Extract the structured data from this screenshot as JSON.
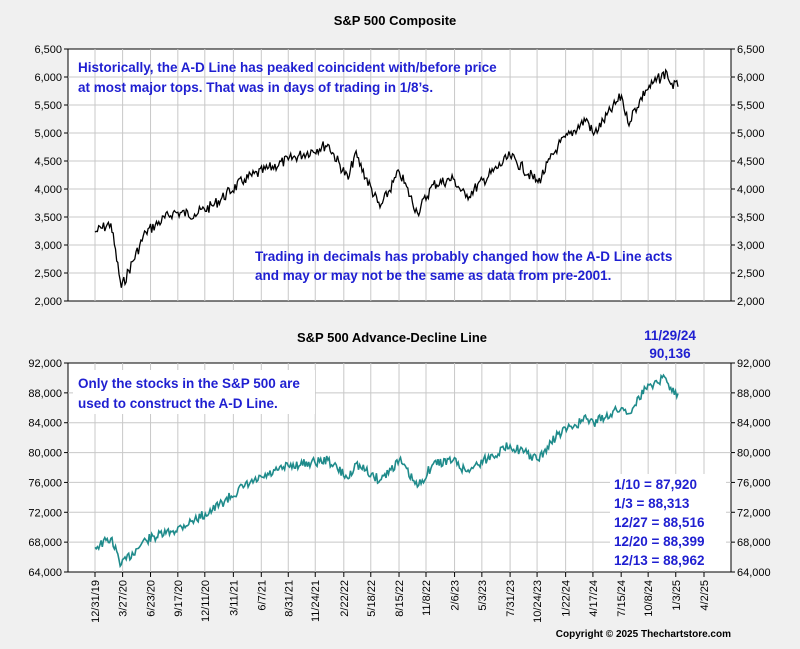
{
  "chart_data": [
    {
      "type": "line",
      "title": "S&P 500 Composite",
      "xlabel": "",
      "ylabel": "",
      "ylim": [
        2000,
        6500
      ],
      "yticks": [
        "2,000",
        "2,500",
        "3,000",
        "3,500",
        "4,000",
        "4,500",
        "5,000",
        "5,500",
        "6,000",
        "6,500"
      ],
      "grid": true,
      "line_color": "#000000",
      "x": [
        "12/31/19",
        "2/19/20",
        "3/23/20",
        "6/8/20",
        "9/2/20",
        "11/9/20",
        "1/4/21",
        "4/15/21",
        "8/31/21",
        "1/3/22",
        "3/8/22",
        "3/29/22",
        "6/16/22",
        "8/16/22",
        "10/12/22",
        "12/1/22",
        "2/2/23",
        "3/13/23",
        "7/31/23",
        "10/27/23",
        "12/29/23",
        "3/28/24",
        "4/19/24",
        "7/16/24",
        "8/5/24",
        "9/30/24",
        "12/6/24",
        "12/18/24",
        "1/10/25"
      ],
      "values": [
        3230,
        3386,
        2237,
        3232,
        3580,
        3550,
        3700,
        4170,
        4522,
        4796,
        4170,
        4631,
        3667,
        4305,
        3577,
        4080,
        4179,
        3856,
        4589,
        4117,
        4770,
        5254,
        4967,
        5667,
        5186,
        5762,
        6090,
        5872,
        5827
      ],
      "annotations": [
        {
          "text": "Historically, the A-D Line has peaked coincident with/before price"
        },
        {
          "text": "at most major tops.  That was in days of trading in 1/8’s."
        },
        {
          "text": "Trading in decimals has probably changed how the A-D Line acts"
        },
        {
          "text": "and may or may not be the same as data from pre-2001."
        }
      ]
    },
    {
      "type": "line",
      "title": "S&P 500 Advance-Decline Line",
      "xlabel": "",
      "ylabel": "",
      "ylim": [
        64000,
        92000
      ],
      "yticks": [
        "64,000",
        "68,000",
        "72,000",
        "76,000",
        "80,000",
        "84,000",
        "88,000",
        "92,000"
      ],
      "grid": true,
      "line_color": "#1f8b8b",
      "x": [
        "12/31/19",
        "2/19/20",
        "3/23/20",
        "6/8/20",
        "9/2/20",
        "11/9/20",
        "1/4/21",
        "4/15/21",
        "8/31/21",
        "1/3/22",
        "3/8/22",
        "3/29/22",
        "6/16/22",
        "8/16/22",
        "10/12/22",
        "12/1/22",
        "2/2/23",
        "3/13/23",
        "7/31/23",
        "10/27/23",
        "12/29/23",
        "3/28/24",
        "4/19/24",
        "7/16/24",
        "8/5/24",
        "9/30/24",
        "11/29/24",
        "12/18/24",
        "1/10/25"
      ],
      "values": [
        67300,
        68500,
        65000,
        68300,
        69500,
        71000,
        72300,
        75500,
        78200,
        79000,
        76500,
        78500,
        76300,
        79000,
        75400,
        78500,
        79000,
        77500,
        81000,
        79000,
        82500,
        84500,
        84000,
        86000,
        85200,
        88600,
        90136,
        88700,
        87920
      ],
      "annotations": [
        {
          "text": "Only the stocks in the S&P 500 are"
        },
        {
          "text": "used to construct the A-D Line."
        },
        {
          "text": "11/29/24"
        },
        {
          "text": "90,136"
        },
        {
          "text": "1/10 = 87,920"
        },
        {
          "text": "1/3 = 88,313"
        },
        {
          "text": "12/27 = 88,516"
        },
        {
          "text": "12/20 = 88,399"
        },
        {
          "text": "12/13 = 88,962"
        }
      ]
    }
  ],
  "x_axis": {
    "domain": [
      "12/31/19",
      "4/2/25"
    ],
    "ticks": [
      "12/31/19",
      "3/27/20",
      "6/23/20",
      "9/17/20",
      "12/11/20",
      "3/11/21",
      "6/7/21",
      "8/31/21",
      "11/24/21",
      "2/22/22",
      "5/18/22",
      "8/15/22",
      "11/8/22",
      "2/6/23",
      "5/3/23",
      "7/31/23",
      "10/24/23",
      "1/22/24",
      "4/17/24",
      "7/15/24",
      "10/8/24",
      "1/3/25",
      "4/2/25"
    ]
  },
  "copyright": "Copyright © 2025 Thechartstore.com"
}
